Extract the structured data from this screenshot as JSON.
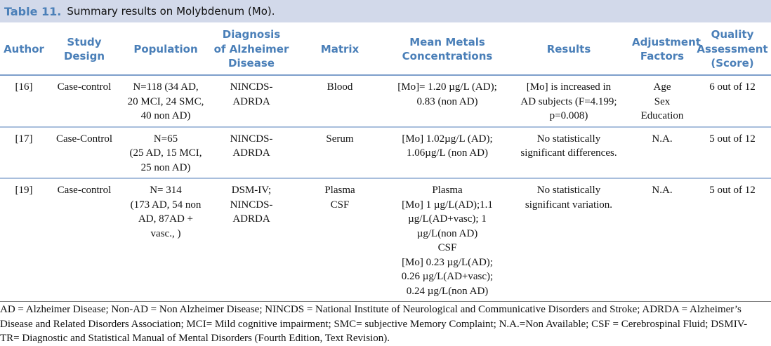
{
  "title": {
    "label": "Table 11.",
    "caption": "Summary results on Molybdenum (Mo)."
  },
  "headers": [
    "Author",
    "Study\nDesign",
    "Population",
    "Diagnosis\nof Alzheimer\nDisease",
    "Matrix",
    "Mean Metals\nConcentrations",
    "Results",
    "Adjustment\nFactors",
    "Quality\nAssessment\n(Score)"
  ],
  "rows": [
    [
      "[16]",
      "Case-control",
      "N=118 (34 AD,\n20 MCI, 24 SMC,\n40 non AD)",
      "NINCDS-\nADRDA",
      "Blood",
      "[Mo]= 1.20 µg/L (AD);\n0.83 (non AD)",
      "[Mo] is increased in\nAD subjects (F=4.199;\np=0.008)",
      "Age\nSex\nEducation",
      "6 out of 12"
    ],
    [
      "[17]",
      "Case-Control",
      "N=65\n(25 AD, 15 MCI,\n25 non AD)",
      "NINCDS-\nADRDA",
      "Serum",
      "[Mo] 1.02µg/L (AD);\n1.06µg/L (non AD)",
      "No statistically\nsignificant differences.",
      "N.A.",
      "5 out of 12"
    ],
    [
      "[19]",
      "Case-control",
      "N= 314\n(173 AD, 54 non\nAD, 87AD +\nvasc., )",
      "DSM-IV;\nNINCDS-\nADRDA",
      "Plasma\nCSF",
      "Plasma\n[Mo] 1 µg/L(AD);1.1\nµg/L(AD+vasc); 1\nµg/L(non AD)\nCSF\n[Mo] 0.23 µg/L(AD);\n0.26 µg/L(AD+vasc);\n0.24 µg/L(non AD)",
      "No statistically\nsignificant variation.",
      "N.A.",
      "5 out of 12"
    ]
  ],
  "footnote": "AD = Alzheimer Disease; Non-AD = Non Alzheimer Disease; NINCDS = National Institute of Neurological and Communicative Disorders and Stroke; ADRDA = Alzheimer’s Disease and Related Disorders Association; MCI= Mild cognitive impairment; SMC= subjective Memory Complaint; N.A.=Non Available; CSF = Cerebrospinal Fluid; DSMIV-TR= Diagnostic and Statistical Manual of Mental Disorders (Fourth Edition, Text Revision)."
}
